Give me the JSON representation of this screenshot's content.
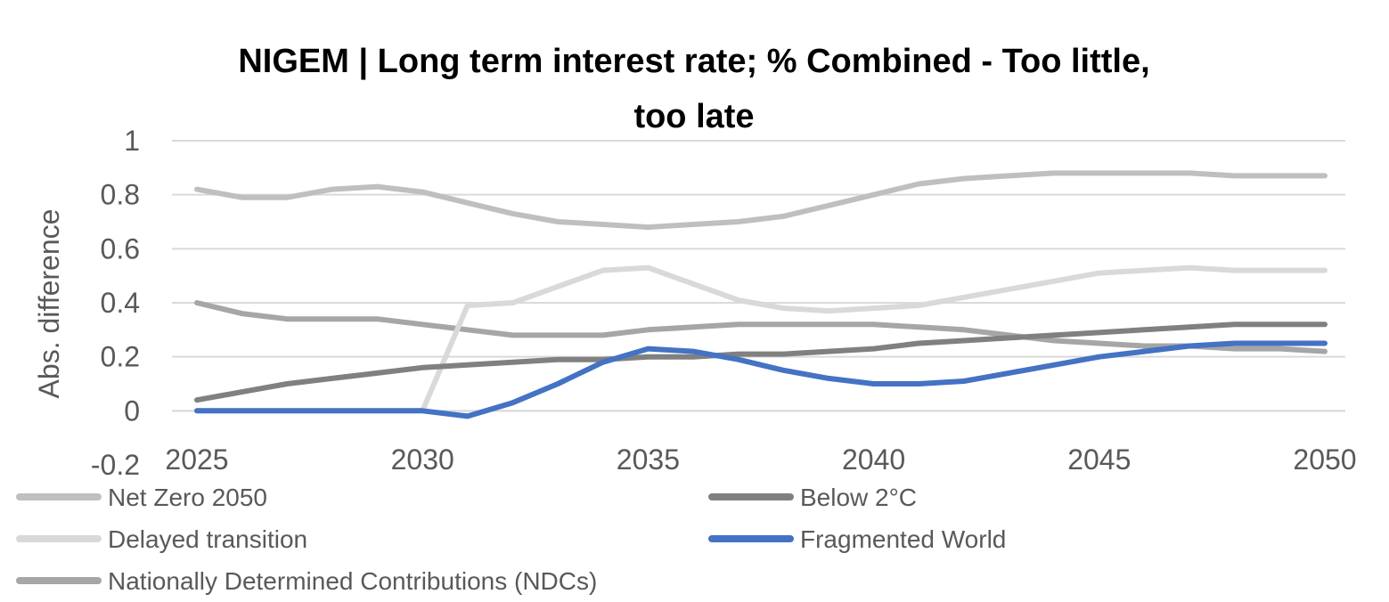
{
  "chart_data": {
    "type": "line",
    "title_line1": "NIGEM | Long term interest rate; % Combined - Too little,",
    "title_line2": "too late",
    "ylabel": "Abs. difference",
    "xlabel": "",
    "ylim": [
      -0.2,
      1
    ],
    "yticks": [
      "1",
      "0.8",
      "0.6",
      "0.4",
      "0.2",
      "0",
      "-0.2"
    ],
    "ytick_values": [
      1,
      0.8,
      0.6,
      0.4,
      0.2,
      0,
      -0.2
    ],
    "xlim": [
      2025,
      2050
    ],
    "xticks": [
      "2025",
      "2030",
      "2035",
      "2040",
      "2045",
      "2050"
    ],
    "xtick_values": [
      2025,
      2030,
      2035,
      2040,
      2045,
      2050
    ],
    "grid": true,
    "legend_position": "bottom",
    "x": [
      2025,
      2026,
      2027,
      2028,
      2029,
      2030,
      2031,
      2032,
      2033,
      2034,
      2035,
      2036,
      2037,
      2038,
      2039,
      2040,
      2041,
      2042,
      2043,
      2044,
      2045,
      2046,
      2047,
      2048,
      2049,
      2050
    ],
    "series": [
      {
        "name": "Net Zero 2050",
        "color": "#BFBFBF",
        "values": [
          0.82,
          0.79,
          0.79,
          0.82,
          0.83,
          0.81,
          0.77,
          0.73,
          0.7,
          0.69,
          0.68,
          0.69,
          0.7,
          0.72,
          0.76,
          0.8,
          0.84,
          0.86,
          0.87,
          0.88,
          0.88,
          0.88,
          0.88,
          0.87,
          0.87,
          0.87
        ]
      },
      {
        "name": "Below 2°C",
        "color": "#808080",
        "values": [
          0.04,
          0.07,
          0.1,
          0.12,
          0.14,
          0.16,
          0.17,
          0.18,
          0.19,
          0.19,
          0.2,
          0.2,
          0.21,
          0.21,
          0.22,
          0.23,
          0.25,
          0.26,
          0.27,
          0.28,
          0.29,
          0.3,
          0.31,
          0.32,
          0.32,
          0.32
        ]
      },
      {
        "name": "Delayed transition",
        "color": "#D9D9D9",
        "values": [
          0,
          0,
          0,
          0,
          0,
          0,
          0.39,
          0.4,
          0.46,
          0.52,
          0.53,
          0.47,
          0.41,
          0.38,
          0.37,
          0.38,
          0.39,
          0.42,
          0.45,
          0.48,
          0.51,
          0.52,
          0.53,
          0.52,
          0.52,
          0.52
        ]
      },
      {
        "name": "Fragmented World",
        "color": "#4472C4",
        "values": [
          0,
          0,
          0,
          0,
          0,
          0,
          -0.02,
          0.03,
          0.1,
          0.18,
          0.23,
          0.22,
          0.19,
          0.15,
          0.12,
          0.1,
          0.1,
          0.11,
          0.14,
          0.17,
          0.2,
          0.22,
          0.24,
          0.25,
          0.25,
          0.25
        ]
      },
      {
        "name": "Nationally Determined Contributions (NDCs)",
        "color": "#A6A6A6",
        "values": [
          0.4,
          0.36,
          0.34,
          0.34,
          0.34,
          0.32,
          0.3,
          0.28,
          0.28,
          0.28,
          0.3,
          0.31,
          0.32,
          0.32,
          0.32,
          0.32,
          0.31,
          0.3,
          0.28,
          0.26,
          0.25,
          0.24,
          0.24,
          0.23,
          0.23,
          0.22
        ]
      }
    ]
  }
}
